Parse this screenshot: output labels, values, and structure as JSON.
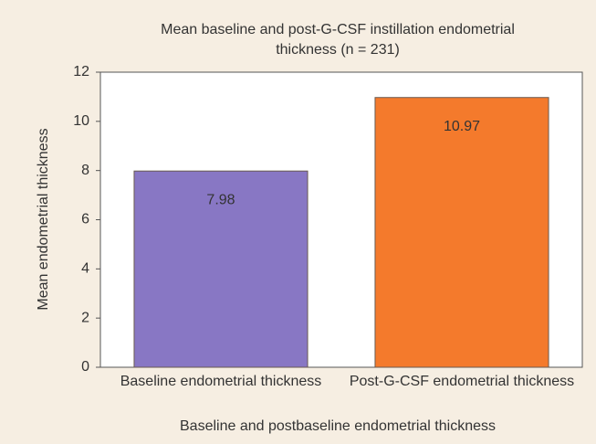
{
  "chart_data": {
    "type": "bar",
    "title": "Mean baseline and post-G-CSF instillation endometrial thickness (n = 231)",
    "x_label": "Baseline and postbaseline endometrial thickness",
    "y_label": "Mean endometrial thickness",
    "categories": [
      "Baseline endometrial thickness",
      "Post-G-CSF endometrial thickness"
    ],
    "values": [
      7.98,
      10.97
    ],
    "colors": [
      "#8877c4",
      "#f47a2c"
    ],
    "ylim": [
      0,
      12
    ],
    "yticks": [
      0,
      2,
      4,
      6,
      8,
      10,
      12
    ],
    "grid": false
  }
}
